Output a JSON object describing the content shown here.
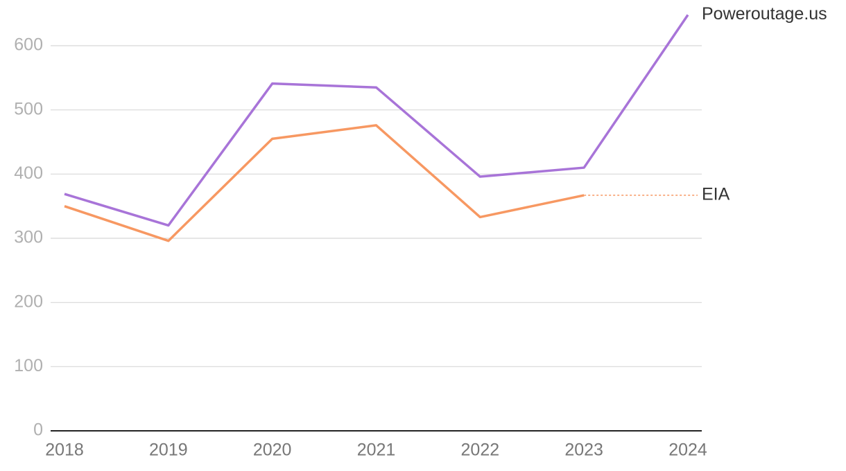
{
  "chart_data": {
    "type": "line",
    "categories": [
      "2018",
      "2019",
      "2020",
      "2021",
      "2022",
      "2023",
      "2024"
    ],
    "series": [
      {
        "name": "Poweroutage.us",
        "color": "#a874d8",
        "values": [
          369,
          320,
          541,
          535,
          396,
          410,
          648
        ]
      },
      {
        "name": "EIA",
        "color": "#f79862",
        "values": [
          350,
          296,
          455,
          476,
          333,
          367,
          null
        ]
      }
    ],
    "ylim": [
      0,
      600
    ],
    "yticks": [
      0,
      100,
      200,
      300,
      400,
      500,
      600
    ],
    "grid": true
  }
}
